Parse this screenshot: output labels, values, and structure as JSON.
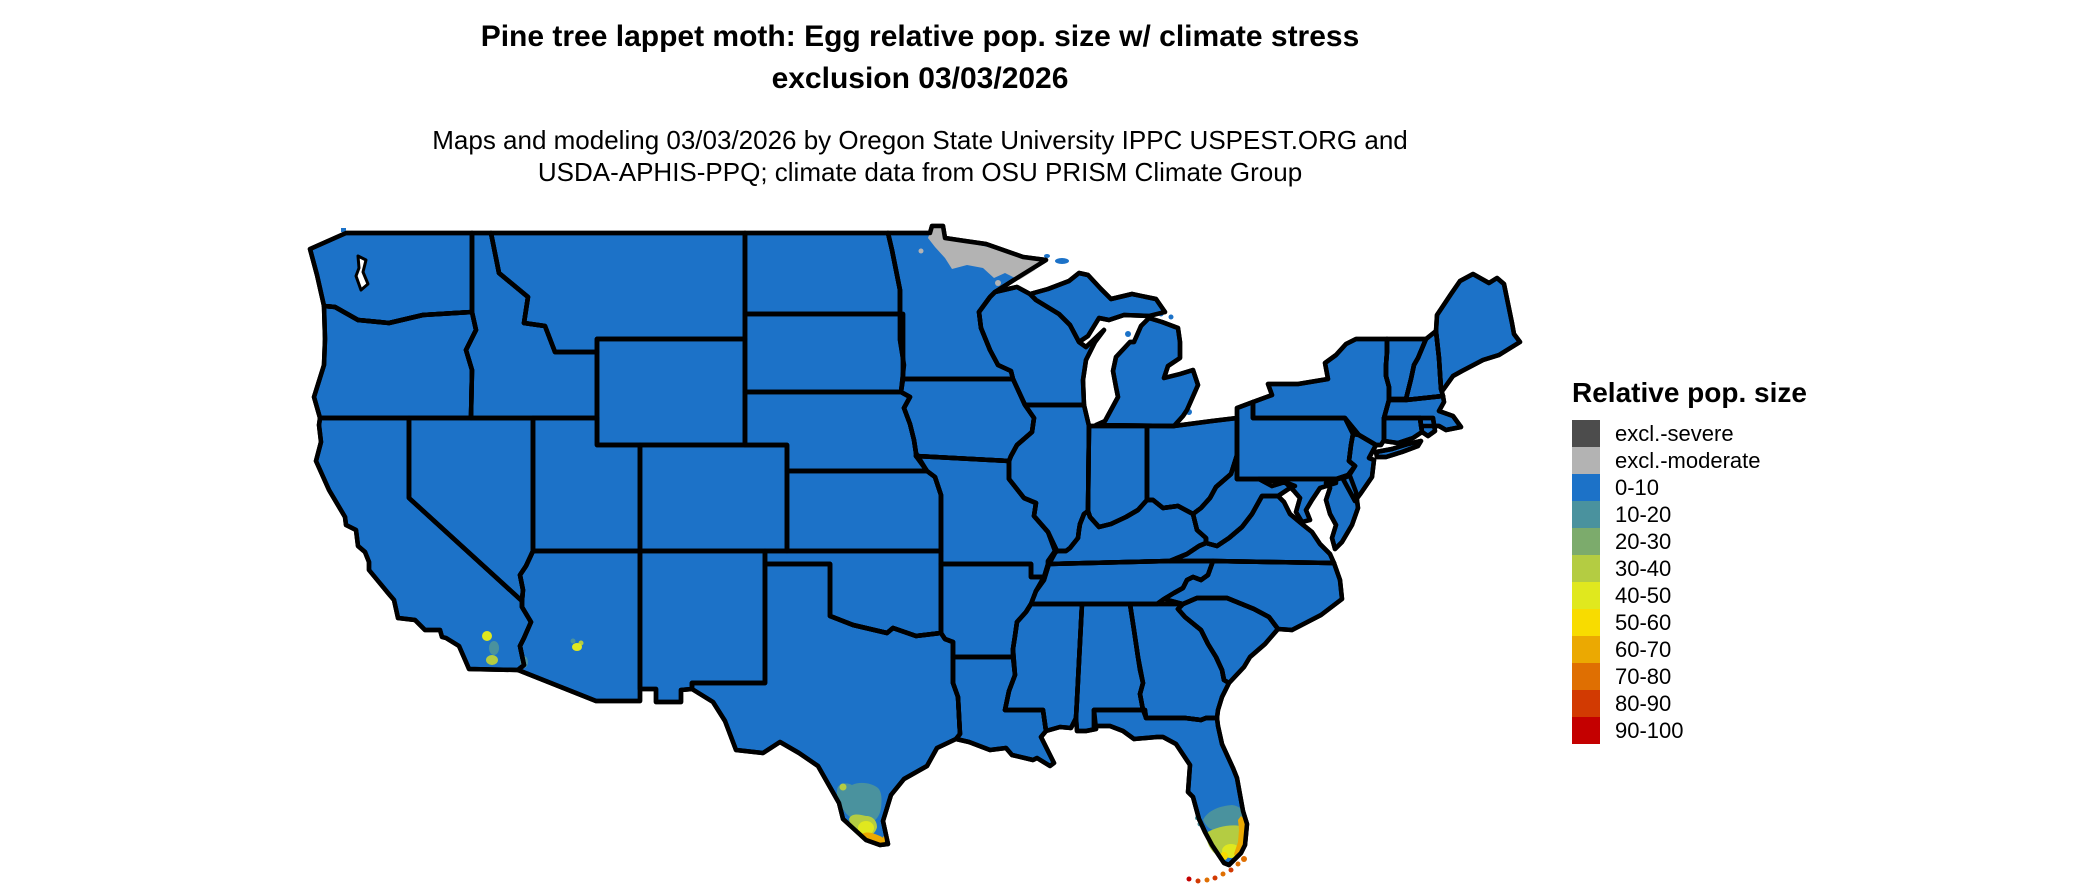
{
  "title": {
    "line1": "Pine tree lappet moth: Egg relative pop. size w/ climate stress",
    "line2": "exclusion 03/03/2026"
  },
  "subtitle": {
    "line1": "Maps and modeling 03/03/2026 by Oregon State University IPPC USPEST.ORG and",
    "line2": "USDA-APHIS-PPQ; climate data from OSU PRISM Climate Group"
  },
  "legend": {
    "title": "Relative pop. size",
    "items": [
      {
        "label": "excl.-severe",
        "color": "#4c4c4c"
      },
      {
        "label": "excl.-moderate",
        "color": "#b3b3b3"
      },
      {
        "label": "0-10",
        "color": "#1c72c8"
      },
      {
        "label": "10-20",
        "color": "#4a929e"
      },
      {
        "label": "20-30",
        "color": "#7cab6c"
      },
      {
        "label": "30-40",
        "color": "#b4cc42"
      },
      {
        "label": "40-50",
        "color": "#e0e81e"
      },
      {
        "label": "50-60",
        "color": "#f8dc00"
      },
      {
        "label": "60-70",
        "color": "#eba902"
      },
      {
        "label": "70-80",
        "color": "#df6f02"
      },
      {
        "label": "80-90",
        "color": "#d23a02"
      },
      {
        "label": "90-100",
        "color": "#c40000"
      }
    ]
  },
  "map": {
    "base_category": "0-10",
    "base_fill": "#1c72c8",
    "border_color": "#000000",
    "background": "#ffffff",
    "annotated_regions": [
      {
        "name": "northern-minnesota-border",
        "category": "excl.-moderate"
      },
      {
        "name": "south-texas-rio-grande-valley",
        "categories": [
          "10-20",
          "30-40",
          "40-50",
          "60-70"
        ]
      },
      {
        "name": "south-florida-everglades",
        "categories": [
          "10-20",
          "30-40",
          "40-50",
          "50-60",
          "60-70"
        ]
      },
      {
        "name": "florida-keys",
        "categories": [
          "70-80",
          "80-90",
          "90-100"
        ]
      },
      {
        "name": "southern-california-imperial-valley",
        "categories": [
          "10-20",
          "30-40",
          "40-50"
        ]
      },
      {
        "name": "phoenix-arizona",
        "categories": [
          "10-20",
          "30-40",
          "40-50"
        ]
      },
      {
        "name": "yuma-arizona",
        "categories": [
          "10-20"
        ]
      }
    ]
  }
}
